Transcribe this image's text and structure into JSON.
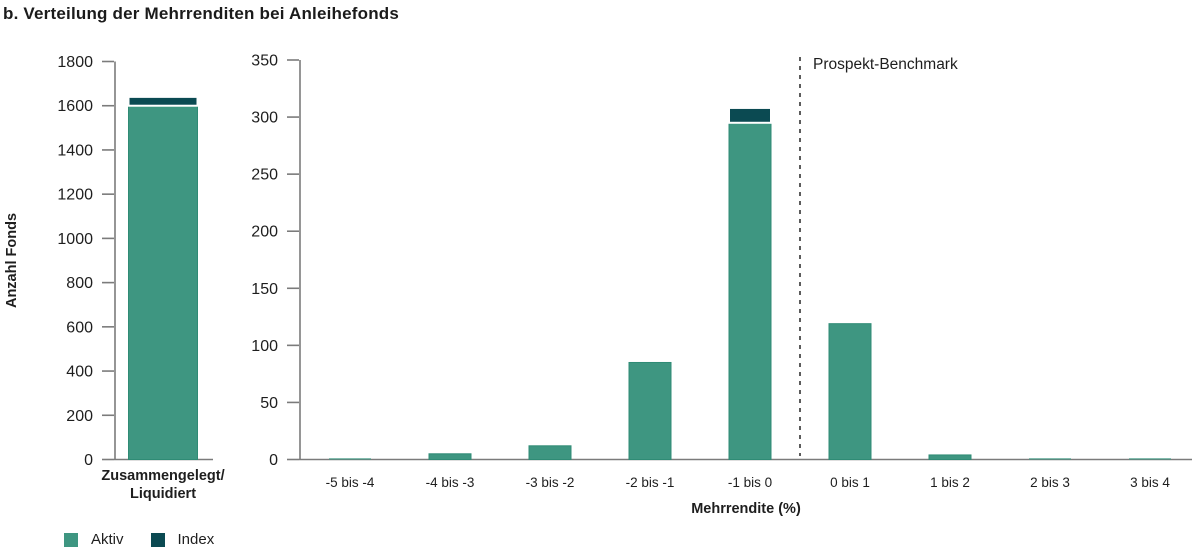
{
  "title": "b. Verteilung der Mehrrenditen bei Anleihefonds",
  "colors": {
    "aktiv": "#3E9681",
    "aktiv_edge": "#2F8B75",
    "index": "#0B4A52",
    "axis": "#7b7b7b",
    "text": "#1e1e1e",
    "benchmark_line": "#333333"
  },
  "legend": {
    "position": "bottom-left",
    "items": [
      {
        "label": "Aktiv",
        "color_key": "aktiv"
      },
      {
        "label": "Index",
        "color_key": "index"
      }
    ]
  },
  "chart_data": [
    {
      "id": "merged-liquidated",
      "type": "bar",
      "stacked": true,
      "ylabel": "Anzahl Fonds",
      "xlabel": "",
      "categories": [
        "Zusammengelegt/\nLiquidiert"
      ],
      "series": [
        {
          "name": "Aktiv",
          "values": [
            1600
          ]
        },
        {
          "name": "Index",
          "values": [
            40
          ]
        }
      ],
      "ylim": [
        0,
        1800
      ],
      "ytick_step": 200,
      "grid": false
    },
    {
      "id": "excess-return-distribution",
      "type": "bar",
      "stacked": true,
      "ylabel": "",
      "xlabel": "Mehrrendite (%)",
      "categories": [
        "-5 bis -4",
        "-4 bis -3",
        "-3 bis -2",
        "-2 bis -1",
        "-1 bis 0",
        "0 bis 1",
        "1 bis 2",
        "2 bis 3",
        "3 bis 4"
      ],
      "series": [
        {
          "name": "Aktiv",
          "values": [
            1,
            5,
            12,
            85,
            295,
            119,
            4,
            1,
            1
          ]
        },
        {
          "name": "Index",
          "values": [
            0,
            0,
            0,
            0,
            13,
            0,
            0,
            0,
            0
          ]
        }
      ],
      "ylim": [
        0,
        350
      ],
      "ytick_step": 50,
      "grid": false,
      "annotation": {
        "label": "Prospekt-Benchmark",
        "x_between": [
          "-1 bis 0",
          "0 bis 1"
        ],
        "style": "dashed-vertical-line"
      }
    }
  ]
}
